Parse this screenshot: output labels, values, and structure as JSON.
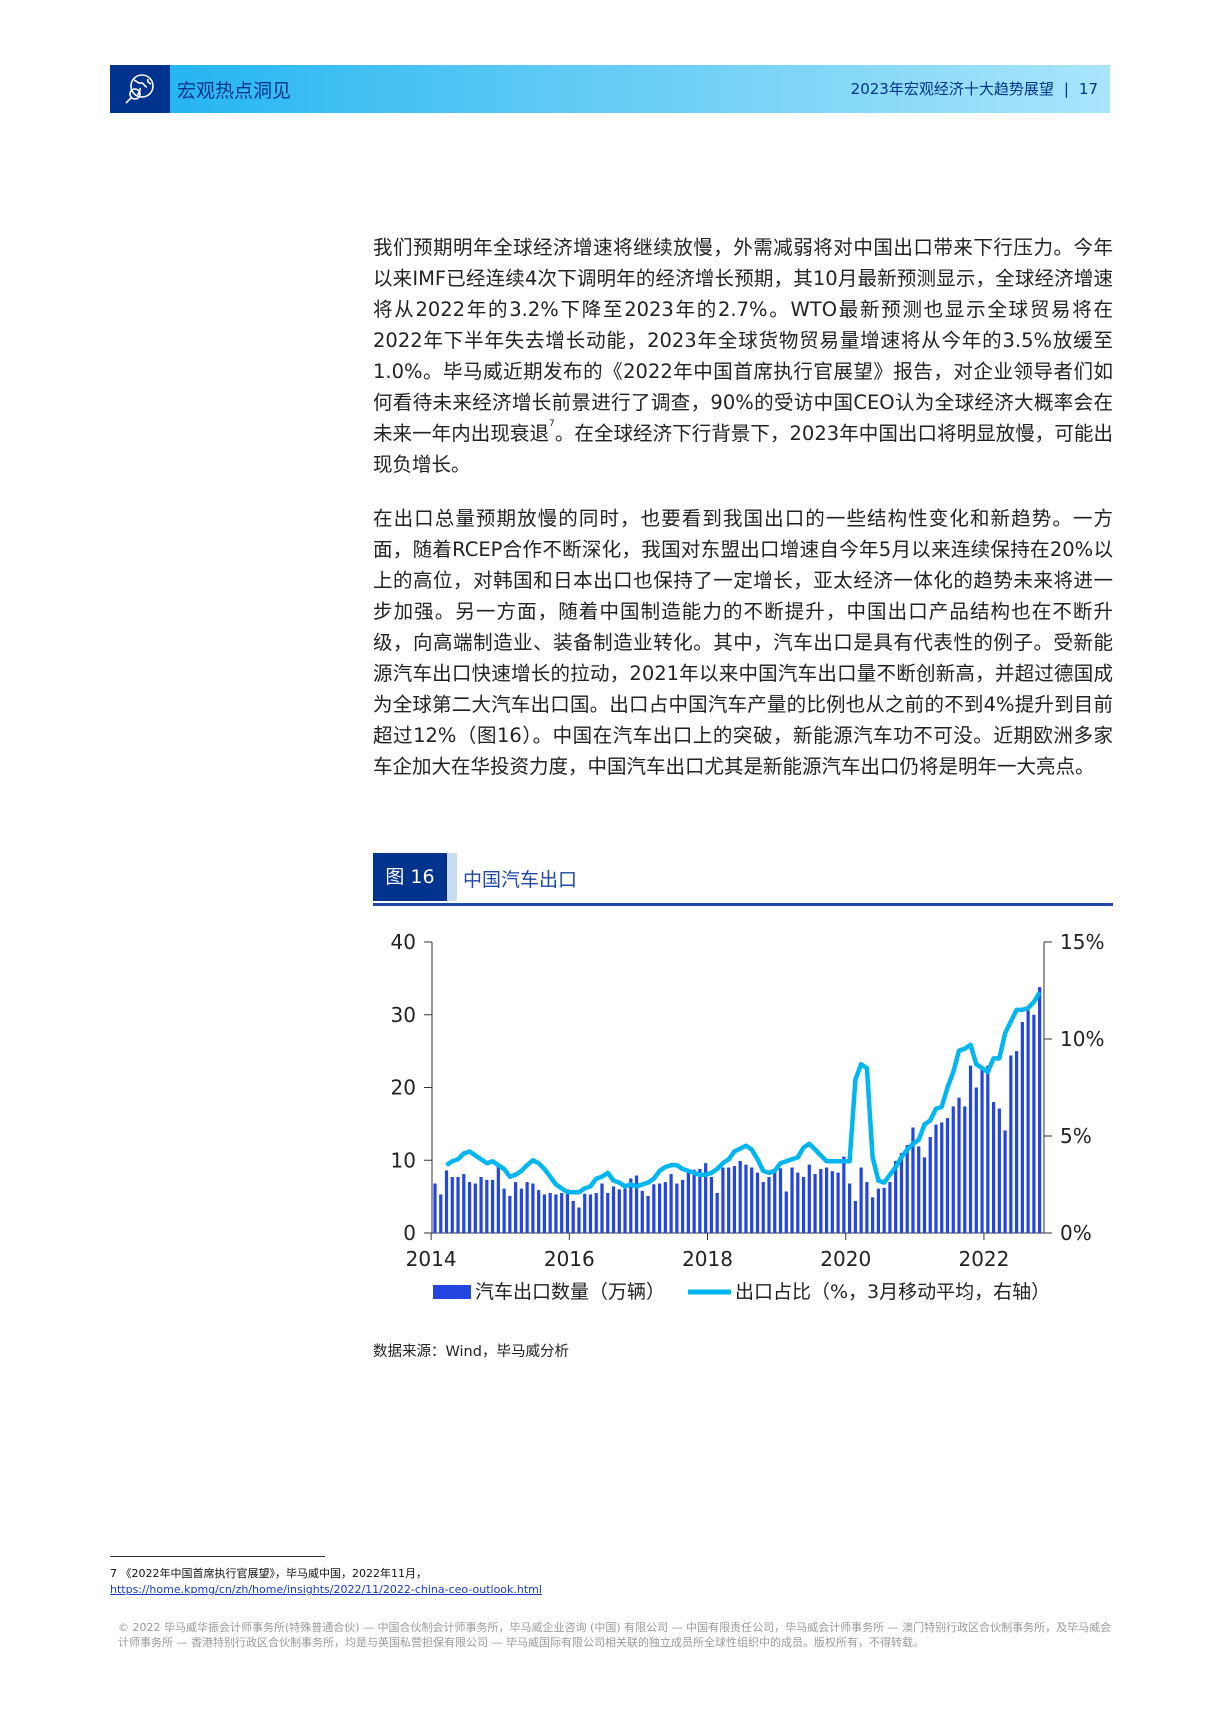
{
  "header": {
    "section_title": "宏观热点洞见",
    "report_title": "2023年宏观经济十大趋势展望",
    "separator": "|",
    "page_number": "17",
    "logo_icon": "globe-magnifier-icon",
    "colors": {
      "dark": "#00338d",
      "band_start": "#1cb2f0",
      "band_end": "#a9e5fb"
    }
  },
  "body": {
    "paragraph1": "我们预期明年全球经济增速将继续放慢，外需减弱将对中国出口带来下行压力。今年以来IMF已经连续4次下调明年的经济增长预期，其10月最新预测显示，全球经济增速将从2022年的3.2%下降至2023年的2.7%。WTO最新预测也显示全球贸易将在2022年下半年失去增长动能，2023年全球货物贸易量增速将从今年的3.5%放缓至1.0%。毕马威近期发布的《2022年中国首席执行官展望》报告，对企业领导者们如何看待未来经济增长前景进行了调查，90%的受访中国CEO认为全球经济大概率会在未来一年内出现衰退",
    "footnote_ref": "7",
    "paragraph1_tail": "。在全球经济下行背景下，2023年中国出口将明显放慢，可能出现负增长。",
    "paragraph2": "在出口总量预期放慢的同时，也要看到我国出口的一些结构性变化和新趋势。一方面，随着RCEP合作不断深化，我国对东盟出口增速自今年5月以来连续保持在20%以上的高位，对韩国和日本出口也保持了一定增长，亚太经济一体化的趋势未来将进一步加强。另一方面，随着中国制造能力的不断提升，中国出口产品结构也在不断升级，向高端制造业、装备制造业转化。其中，汽车出口是具有代表性的例子。受新能源汽车出口快速增长的拉动，2021年以来中国汽车出口量不断创新高，并超过德国成为全球第二大汽车出口国。出口占中国汽车产量的比例也从之前的不到4%提升到目前超过12%（图16）。中国在汽车出口上的突破，新能源汽车功不可没。近期欧洲多家车企加大在华投资力度，中国汽车出口尤其是新能源汽车出口仍将是明年一大亮点。"
  },
  "figure": {
    "number": "图 16",
    "title": "中国汽车出口",
    "source": "数据来源：Wind，毕马威分析"
  },
  "chart_data": {
    "type": "bar+line",
    "x_start": "2014-01",
    "x_end": "2022-10",
    "frequency": "monthly",
    "x_tick_labels": [
      "2014",
      "2016",
      "2018",
      "2020",
      "2022"
    ],
    "y_left": {
      "ylim": [
        0,
        40
      ],
      "ticks": [
        "0",
        "10",
        "20",
        "30",
        "40"
      ]
    },
    "y_right": {
      "ylim": [
        0,
        15
      ],
      "ticks": [
        "0%",
        "5%",
        "10%",
        "15%"
      ]
    },
    "legend_position": "bottom",
    "series": [
      {
        "name": "汽车出口数量（万辆）",
        "type": "bar",
        "axis": "left",
        "color": "#2346e0",
        "values": [
          6.8,
          5.3,
          8.6,
          7.7,
          7.7,
          8.1,
          7.0,
          6.8,
          7.7,
          7.3,
          7.3,
          9.5,
          6.1,
          5.1,
          7.0,
          6.1,
          7.0,
          6.8,
          5.9,
          5.3,
          5.5,
          5.3,
          5.5,
          6.0,
          4.4,
          3.5,
          5.4,
          5.3,
          5.5,
          6.8,
          5.5,
          6.4,
          6.0,
          6.1,
          7.5,
          7.9,
          5.8,
          5.1,
          6.7,
          6.8,
          7.0,
          8.1,
          6.8,
          7.3,
          8.3,
          8.7,
          8.8,
          9.6,
          7.7,
          5.5,
          9.0,
          9.0,
          9.2,
          9.9,
          9.4,
          9.0,
          8.3,
          7.0,
          7.7,
          8.3,
          8.9,
          5.7,
          9.0,
          8.3,
          7.7,
          9.4,
          8.1,
          8.8,
          9.0,
          8.5,
          8.3,
          10.5,
          6.8,
          4.4,
          9.0,
          7.0,
          4.9,
          6.1,
          6.2,
          7.0,
          9.9,
          11.0,
          12.1,
          14.5,
          11.9,
          10.4,
          13.2,
          14.9,
          15.2,
          15.8,
          17.4,
          18.6,
          17.4,
          23.0,
          20.0,
          22.4,
          23.0,
          18.0,
          17.1,
          14.1,
          24.4,
          25.0,
          29.0,
          30.6,
          30.0,
          33.8
        ]
      },
      {
        "name": "出口占比（%，3月移动平均，右轴）",
        "type": "line",
        "axis": "right",
        "color": "#00b6f0",
        "values": [
          null,
          null,
          3.5,
          3.7,
          3.8,
          4.1,
          4.2,
          4.0,
          3.8,
          3.6,
          3.7,
          3.5,
          3.3,
          2.9,
          3.0,
          3.2,
          3.5,
          3.75,
          3.6,
          3.3,
          2.9,
          2.5,
          2.3,
          2.1,
          2.1,
          2.1,
          2.3,
          2.4,
          2.8,
          2.9,
          3.1,
          2.7,
          2.6,
          2.4,
          2.5,
          2.4,
          2.5,
          2.6,
          2.8,
          3.2,
          3.4,
          3.5,
          3.5,
          3.3,
          3.2,
          3.1,
          3.0,
          3.0,
          3.1,
          3.3,
          3.6,
          3.8,
          4.2,
          4.35,
          4.5,
          4.3,
          3.8,
          3.2,
          3.1,
          3.2,
          3.6,
          3.7,
          3.8,
          3.9,
          4.4,
          4.6,
          4.3,
          4.0,
          3.7,
          3.7,
          3.7,
          3.7,
          3.7,
          7.9,
          8.7,
          8.5,
          3.9,
          2.7,
          2.6,
          3.0,
          3.4,
          3.9,
          4.3,
          4.6,
          4.8,
          5.6,
          5.8,
          6.4,
          6.5,
          7.5,
          8.3,
          9.4,
          9.5,
          9.7,
          8.7,
          8.5,
          8.3,
          9.0,
          9.0,
          10.3,
          10.9,
          11.5,
          11.5,
          11.6,
          11.9,
          12.4
        ]
      }
    ]
  },
  "footnote": {
    "number": "7",
    "text": "《2022年中国首席执行官展望》，毕马威中国，2022年11月，",
    "link": "https://home.kpmg/cn/zh/home/insights/2022/11/2022-china-ceo-outlook.html"
  },
  "copyright": "© 2022 毕马威华振会计师事务所(特殊普通合伙) — 中国合伙制会计师事务所，毕马威企业咨询 (中国) 有限公司 — 中国有限责任公司，毕马威会计师事务所 — 澳门特别行政区合伙制事务所，及毕马威会计师事务所 — 香港特别行政区合伙制事务所，均是与英国私营担保有限公司 — 毕马威国际有限公司相关联的独立成员所全球性组织中的成员。版权所有，不得转载。"
}
